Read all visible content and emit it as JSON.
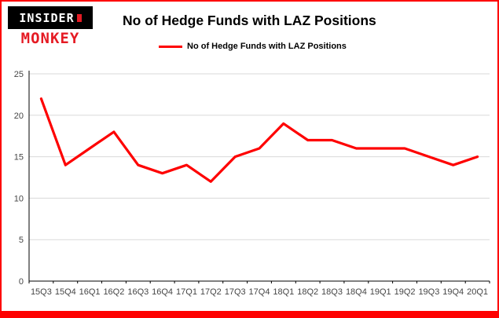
{
  "logo": {
    "line1": "INSIDER",
    "line2": "MONKEY"
  },
  "title": "No of Hedge Funds with LAZ Positions",
  "legend": {
    "label": "No of Hedge Funds with LAZ Positions",
    "color": "#fe0000"
  },
  "colors": {
    "accent": "#fe0000",
    "frame_border": "#fe0000",
    "logo_red": "#e51b24",
    "grid": "#d9d9d9"
  },
  "chart_data": {
    "type": "line",
    "title": "No of Hedge Funds with LAZ Positions",
    "series_name": "No of Hedge Funds with LAZ Positions",
    "categories": [
      "15Q3",
      "15Q4",
      "16Q1",
      "16Q2",
      "16Q3",
      "16Q4",
      "17Q1",
      "17Q2",
      "17Q3",
      "17Q4",
      "18Q1",
      "18Q2",
      "18Q3",
      "18Q4",
      "19Q1",
      "19Q2",
      "19Q3",
      "19Q4",
      "20Q1"
    ],
    "values": [
      22,
      14,
      16,
      18,
      14,
      13,
      14,
      12,
      15,
      16,
      19,
      17,
      17,
      16,
      16,
      16,
      15,
      14,
      15
    ],
    "xlabel": "",
    "ylabel": "",
    "ylim": [
      0,
      25
    ],
    "yticks": [
      0,
      5,
      10,
      15,
      20,
      25
    ],
    "grid": true,
    "grid_color": "#d9d9d9",
    "line_color": "#fe0000",
    "legend_position": "top-left"
  }
}
